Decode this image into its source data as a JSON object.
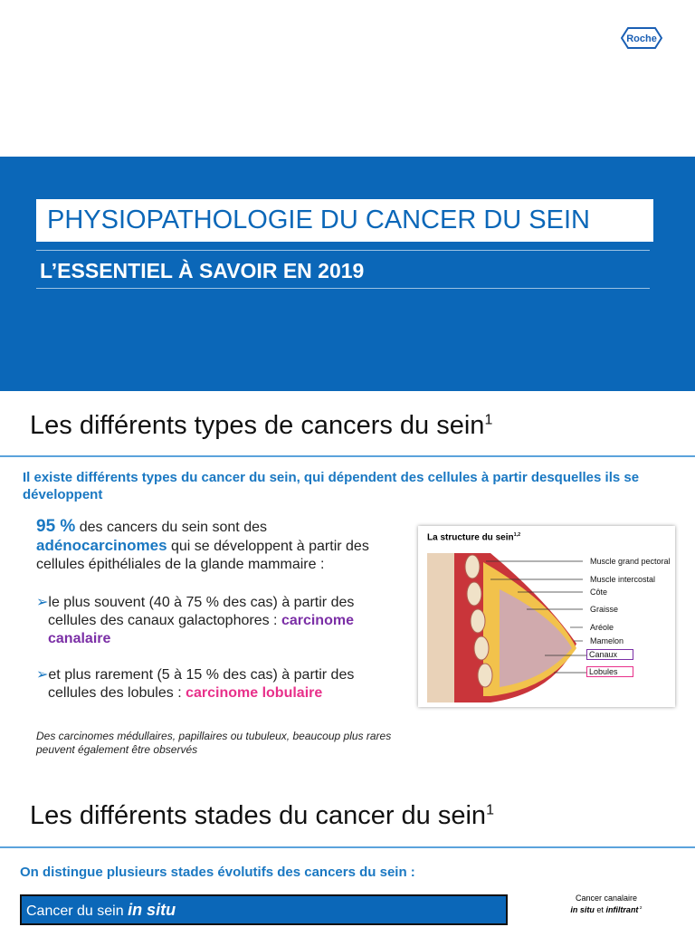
{
  "header": {
    "logo": "Roche",
    "title": "PHYSIOPATHOLOGIE DU CANCER DU SEIN",
    "subtitle": "L’ESSENTIEL À SAVOIR EN 2019"
  },
  "types": {
    "heading": "Les différents types de cancers du sein",
    "heading_ref": "1",
    "intro": "Il existe différents types du cancer du sein, qui dépendent des cellules à partir desquelles ils se développent",
    "stat": "95 %",
    "stat_text": " des cancers du sein sont des ",
    "term": "adénocarcinomes",
    "term_text": " qui se développent à partir des cellules épithéliales de la glande mammaire :",
    "bullets": [
      {
        "text": "le plus souvent (40 à 75 % des cas) à partir des cellules des canaux galactophores : ",
        "highlight": "carcinome canalaire"
      },
      {
        "text": "et plus rarement (5 à 15 % des cas) à partir des cellules des lobules : ",
        "highlight": "carcinome lobulaire"
      }
    ],
    "note": "Des carcinomes médullaires, papillaires ou tubuleux, beaucoup plus rares peuvent également être observés",
    "figure": {
      "title": "La structure du sein",
      "ref": "1,2",
      "labels": [
        "Muscle grand pectoral",
        "Muscle intercostal",
        "Côte",
        "Graisse",
        "Aréole",
        "Mamelon",
        "Canaux",
        "Lobules"
      ]
    }
  },
  "stages": {
    "heading": "Les différents stades du cancer du sein",
    "heading_ref": "1",
    "intro": "On distingue plusieurs stades évolutifs des cancers du sein :",
    "table_header": "Cancer du sein ",
    "table_header_em": "in situ",
    "caption": {
      "line1": "Cancer canalaire",
      "em1": "in situ",
      "join": " et ",
      "em2": "infiltrant",
      "ref": " 2"
    }
  }
}
